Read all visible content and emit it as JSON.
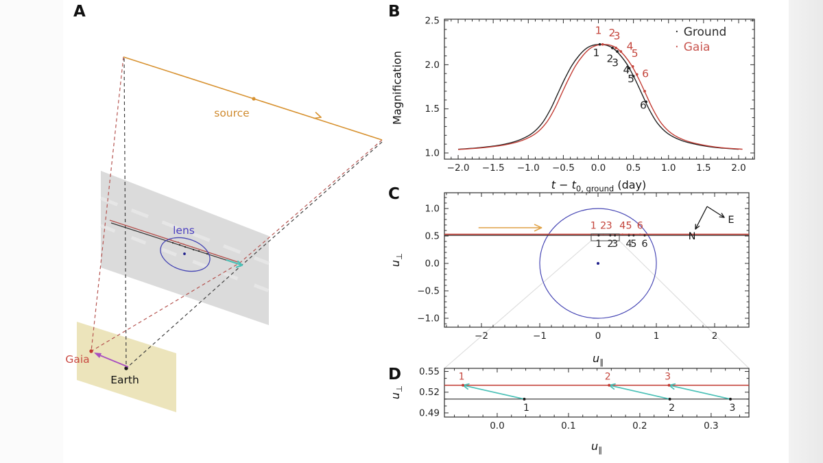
{
  "panel_letters": {
    "a": "A",
    "b": "B",
    "c": "C",
    "d": "D"
  },
  "panel_a": {
    "labels": {
      "source": "source",
      "lens": "lens",
      "gaia": "Gaia",
      "earth": "Earth"
    },
    "colors": {
      "source": "#d7912f",
      "lens_ring": "#4646b4",
      "lens_text": "#4b3fc0",
      "gaia": "#c23b33",
      "earth": "#1f1f1f",
      "proper_motion_arrow": "#a84fc0",
      "trajectory_cyan": "#49c0b6",
      "lens_plane": "#dbdbdb",
      "observer_plane": "#ece4bb"
    }
  },
  "axis_labels": {
    "b_y": "Magnification",
    "b_x": {
      "t1": "t",
      "op": " − ",
      "t2": "t",
      "sub": "0, ground",
      "unit": " (day)"
    },
    "u_par": {
      "base": "u",
      "sub": "∥"
    },
    "u_perp": {
      "base": "u",
      "sub": "⊥"
    }
  },
  "legend": {
    "entries": [
      {
        "label": "Ground",
        "color": "#2b2b2b"
      },
      {
        "label": "Gaia",
        "color": "#c8554f"
      }
    ]
  },
  "chart_data": [
    {
      "id": "B",
      "type": "line",
      "title": "",
      "xlabel": "t − t0,ground (day)",
      "ylabel": "Magnification",
      "xlim": [
        -2.196,
        2.225
      ],
      "ylim": [
        0.93,
        2.516
      ],
      "x_ticks": [
        -2.0,
        -1.5,
        -1.0,
        -0.5,
        0.0,
        0.5,
        1.0,
        1.5,
        2.0
      ],
      "x_tick_labels": [
        "−2.0",
        "−1.5",
        "−1.0",
        "−0.5",
        "0.0",
        "0.5",
        "1.0",
        "1.5",
        "2.0"
      ],
      "y_ticks": [
        1.0,
        1.5,
        2.0,
        2.5
      ],
      "y_tick_labels": [
        "1.0",
        "1.5",
        "2.0",
        "2.5"
      ],
      "x_minor_step": 0.1,
      "y_minor_step": 0.1,
      "legend_position": "top-right",
      "series": [
        {
          "name": "Ground",
          "color": "#1f1f1f",
          "x": [
            -2.0,
            -1.7,
            -1.4,
            -1.15,
            -0.95,
            -0.8,
            -0.68,
            -0.58,
            -0.48,
            -0.38,
            -0.28,
            -0.18,
            -0.08,
            0.02,
            0.12,
            0.22,
            0.32,
            0.42,
            0.52,
            0.62,
            0.72,
            0.84,
            0.99,
            1.19,
            1.44,
            1.7,
            2.0
          ],
          "y": [
            1.042,
            1.06,
            1.09,
            1.14,
            1.22,
            1.34,
            1.5,
            1.67,
            1.84,
            1.99,
            2.1,
            2.18,
            2.22,
            2.23,
            2.22,
            2.18,
            2.1,
            1.99,
            1.84,
            1.67,
            1.5,
            1.34,
            1.22,
            1.14,
            1.09,
            1.06,
            1.042
          ]
        },
        {
          "name": "Gaia",
          "color": "#c23b33",
          "x": [
            -2.0,
            -1.945,
            -1.645,
            -1.345,
            -1.095,
            -0.895,
            -0.745,
            -0.625,
            -0.525,
            -0.425,
            -0.325,
            -0.225,
            -0.125,
            -0.025,
            0.075,
            0.175,
            0.275,
            0.375,
            0.475,
            0.575,
            0.675,
            0.775,
            0.895,
            1.045,
            1.245,
            1.495,
            1.755,
            2.055
          ],
          "y": [
            1.04,
            1.042,
            1.06,
            1.09,
            1.14,
            1.22,
            1.34,
            1.5,
            1.67,
            1.84,
            1.99,
            2.1,
            2.18,
            2.22,
            2.23,
            2.22,
            2.18,
            2.1,
            1.99,
            1.84,
            1.67,
            1.5,
            1.34,
            1.22,
            1.14,
            1.09,
            1.06,
            1.042
          ]
        }
      ],
      "epochs": {
        "labels": [
          "1",
          "2",
          "3",
          "4",
          "5",
          "6"
        ],
        "ground": {
          "color": "#1f1f1f",
          "dot_t": [
            0.02,
            0.2,
            0.27,
            0.44,
            0.5,
            0.68
          ],
          "dot_a": [
            2.23,
            2.19,
            2.15,
            1.96,
            1.87,
            1.58
          ],
          "label_t": [
            -0.03,
            0.165,
            0.24,
            0.4,
            0.465,
            0.64
          ],
          "label_a": [
            2.095,
            2.03,
            1.985,
            1.9,
            1.8,
            1.5
          ]
        },
        "gaia": {
          "color": "#c4453c",
          "dot_t": [
            0.06,
            0.25,
            0.32,
            0.49,
            0.55,
            0.66
          ],
          "dot_a": [
            2.23,
            2.19,
            2.15,
            1.98,
            1.89,
            1.7
          ],
          "label_t": [
            0.0,
            0.195,
            0.265,
            0.45,
            0.52,
            0.67
          ],
          "label_a": [
            2.35,
            2.32,
            2.285,
            2.17,
            2.09,
            1.86
          ]
        }
      }
    },
    {
      "id": "C",
      "type": "line",
      "xlabel": "u∥",
      "ylabel": "u⊥",
      "xlim": [
        -2.635,
        2.588
      ],
      "ylim": [
        -1.1625,
        1.2875
      ],
      "x_ticks": [
        -2,
        -1,
        0,
        1,
        2
      ],
      "x_tick_labels": [
        "−2",
        "−1",
        "0",
        "1",
        "2"
      ],
      "y_ticks": [
        1.0,
        0.5,
        0.0,
        -0.5,
        -1.0
      ],
      "y_tick_labels": [
        "1.0",
        "0.5",
        "0.0",
        "−0.5",
        "−1.0"
      ],
      "x_minor_step": 0.2,
      "y_minor_step": 0.1,
      "einstein_ring": {
        "cx": 0,
        "cy": 0,
        "r": 1.0,
        "color": "#4646b4"
      },
      "lens_pos": {
        "x": 0,
        "y": 0,
        "color": "#20208c"
      },
      "trajectories": [
        {
          "name": "Gaia",
          "u_perp": 0.53,
          "color": "#c23b33"
        },
        {
          "name": "Ground",
          "u_perp": 0.51,
          "color": "#2a2a2a"
        }
      ],
      "motion_arrow": {
        "x1": -2.05,
        "x2": -0.97,
        "y": 0.65,
        "color": "#dfa145"
      },
      "epochs": {
        "labels": [
          "1",
          "2",
          "3",
          "4",
          "5",
          "6"
        ],
        "gaia_label_u": [
          -0.08,
          0.09,
          0.19,
          0.42,
          0.53,
          0.72
        ],
        "ground_label_u": [
          0.01,
          0.21,
          0.29,
          0.53,
          0.61,
          0.8
        ],
        "gaia_color": "#c4453c",
        "ground_color": "#1f1f1f"
      },
      "zoom_box": {
        "x1": -0.118,
        "x2": 0.365,
        "y1": 0.4125,
        "y2": 0.5375
      },
      "compass": {
        "n_label": "N",
        "e_label": "E"
      }
    },
    {
      "id": "D",
      "type": "line",
      "xlabel": "u∥",
      "ylabel": "u⊥",
      "xlim": [
        -0.074,
        0.353
      ],
      "ylim": [
        0.484,
        0.5545
      ],
      "x_ticks": [
        0.0,
        0.1,
        0.2,
        0.3
      ],
      "x_tick_labels": [
        "0.0",
        "0.1",
        "0.2",
        "0.3"
      ],
      "y_ticks": [
        0.55,
        0.52,
        0.49
      ],
      "y_tick_labels": [
        "0.55",
        "0.52",
        "0.49"
      ],
      "x_minor_step": 0.02,
      "y_minor_step": 0.01,
      "gaia_line_u_perp": 0.53,
      "ground_line_u_perp": 0.51,
      "gaia_color": "#c23b33",
      "ground_color": "#2a2a2a",
      "labels": [
        "1",
        "2",
        "3"
      ],
      "gaia_u": [
        -0.048,
        0.157,
        0.241
      ],
      "ground_u": [
        0.038,
        0.242,
        0.327
      ],
      "arrow_color": "#49c0b6",
      "gaia_label_color": "#c4453c",
      "ground_label_color": "#1f1f1f"
    }
  ]
}
